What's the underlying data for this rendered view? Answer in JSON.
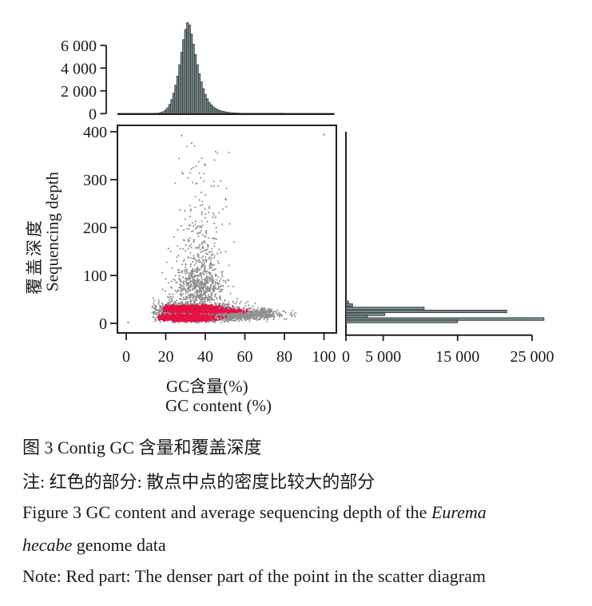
{
  "page": {
    "background": "#ffffff"
  },
  "colors": {
    "axis": "#1f1f1f",
    "text": "#1a1a1a",
    "bar_fill": "#75898b",
    "bar_stroke": "#1f1f1f",
    "point_gray": "#8f8f8f",
    "dense_red": "#e51144"
  },
  "scatter_labels": {
    "xlabel_zh": "GC含量(%)",
    "xlabel_en": "GC content (%)",
    "ylabel_zh": "覆盖深度",
    "ylabel_en": "Sequencing depth"
  },
  "caption": {
    "title_zh": "图 3 Contig GC 含量和覆盖深度",
    "note_zh": "注: 红色的部分: 散点中点的密度比较大的部分",
    "title_en_pre": "Figure 3 GC content and average sequencing depth of the ",
    "title_en_italic1": "Eurema",
    "title_en_italic2": "hecabe",
    "title_en_post": " genome data",
    "note_en": "Note: Red part: The denser part of the point in the scatter diagram"
  },
  "chart_data": {
    "type": "composite",
    "description": "Joint plot: central scatter of contig GC content (%) vs sequencing depth, with marginal histograms (top: GC content counts, right: depth counts). Red marks densest scatter regions.",
    "top_histogram": {
      "type": "bar",
      "orientation": "vertical",
      "bin_start_gc": 14,
      "bin_width_gc": 1,
      "values": [
        10,
        20,
        35,
        60,
        110,
        190,
        320,
        520,
        820,
        1250,
        1800,
        2500,
        3300,
        4300,
        5400,
        6500,
        7400,
        8000,
        7800,
        7000,
        6100,
        5200,
        4300,
        3500,
        2800,
        2200,
        1700,
        1300,
        1000,
        780,
        610,
        480,
        380,
        300,
        240,
        195,
        160,
        130,
        105,
        86,
        70,
        58,
        48,
        40,
        34,
        28,
        24,
        20,
        17,
        15,
        13,
        11,
        10,
        9,
        8,
        7,
        6,
        5,
        5,
        4,
        4,
        3,
        3,
        2,
        2,
        2,
        2
      ],
      "yticks": [
        0,
        2000,
        4000,
        6000
      ],
      "ytick_labels": [
        "0",
        "2 000",
        "4 000",
        "6 000"
      ],
      "ylim": [
        0,
        8000
      ],
      "xlim": [
        0,
        105
      ]
    },
    "scatter": {
      "type": "scatter",
      "xlabel": "GC content (%)",
      "ylabel": "Sequencing depth",
      "xticks": [
        0,
        20,
        40,
        60,
        80,
        100
      ],
      "xtick_labels": [
        "0",
        "20",
        "40",
        "60",
        "80",
        "100"
      ],
      "yticks": [
        0,
        100,
        200,
        300,
        400
      ],
      "ytick_labels": [
        "0",
        "100",
        "200",
        "300",
        "400"
      ],
      "xlim": [
        -4,
        106
      ],
      "ylim": [
        -18,
        412
      ],
      "clusters": [
        {
          "name": "gray-main-band",
          "n": 2400,
          "cx": 35,
          "cy": 24,
          "sx": 10,
          "sy": 10,
          "xmin": 13,
          "xmax": 88,
          "ymin": 1,
          "ymax": 58,
          "color": "gray"
        },
        {
          "name": "gray-right-tail",
          "n": 1000,
          "cx": 56,
          "cy": 19,
          "sx": 11,
          "sy": 5.5,
          "xmin": 20,
          "xmax": 86,
          "ymin": 2,
          "ymax": 42,
          "color": "gray"
        },
        {
          "name": "gray-plume-low",
          "n": 550,
          "cx": 37,
          "cy": 75,
          "sx": 6.5,
          "sy": 26,
          "xmin": 18,
          "xmax": 70,
          "ymin": 48,
          "ymax": 165,
          "color": "gray"
        },
        {
          "name": "gray-plume-mid",
          "n": 200,
          "cx": 38,
          "cy": 155,
          "sx": 6,
          "sy": 45,
          "xmin": 20,
          "xmax": 68,
          "ymin": 70,
          "ymax": 265,
          "color": "gray"
        },
        {
          "name": "gray-top-sparse",
          "n": 48,
          "cx": 38,
          "cy": 295,
          "sx": 7,
          "sy": 55,
          "xmin": 22,
          "xmax": 60,
          "ymin": 210,
          "ymax": 399,
          "color": "gray"
        },
        {
          "name": "red-upper-band",
          "n": 1500,
          "cx": 33,
          "cy": 30,
          "sx": 6.5,
          "sy": 3.1,
          "xmin": 19,
          "xmax": 56,
          "ymin": 21,
          "ymax": 42,
          "color": "red"
        },
        {
          "name": "red-upper-streak",
          "n": 320,
          "cx": 45,
          "cy": 26,
          "sx": 8,
          "sy": 1.6,
          "xmin": 24,
          "xmax": 62,
          "ymin": 22,
          "ymax": 30,
          "color": "red"
        },
        {
          "name": "red-lower-band",
          "n": 1250,
          "cx": 30,
          "cy": 12,
          "sx": 6,
          "sy": 3,
          "xmin": 16,
          "xmax": 52,
          "ymin": 4,
          "ymax": 20,
          "color": "red"
        }
      ],
      "outlier_points": [
        [
          1,
          2
        ],
        [
          28,
          392
        ],
        [
          100,
          394
        ]
      ]
    },
    "right_histogram": {
      "type": "bar",
      "orientation": "horizontal",
      "bins": [
        {
          "depth": 44,
          "count": 350
        },
        {
          "depth": 38,
          "count": 900
        },
        {
          "depth": 31,
          "count": 10500
        },
        {
          "depth": 25,
          "count": 21600
        },
        {
          "depth": 19,
          "count": 5200
        },
        {
          "depth": 14,
          "count": 2900
        },
        {
          "depth": 9,
          "count": 26600
        },
        {
          "depth": 4,
          "count": 15000
        }
      ],
      "xticks": [
        0,
        5000,
        15000,
        25000
      ],
      "xtick_labels": [
        "0",
        "5 000",
        "15 000",
        "25 000"
      ],
      "xlim": [
        0,
        27500
      ]
    }
  }
}
